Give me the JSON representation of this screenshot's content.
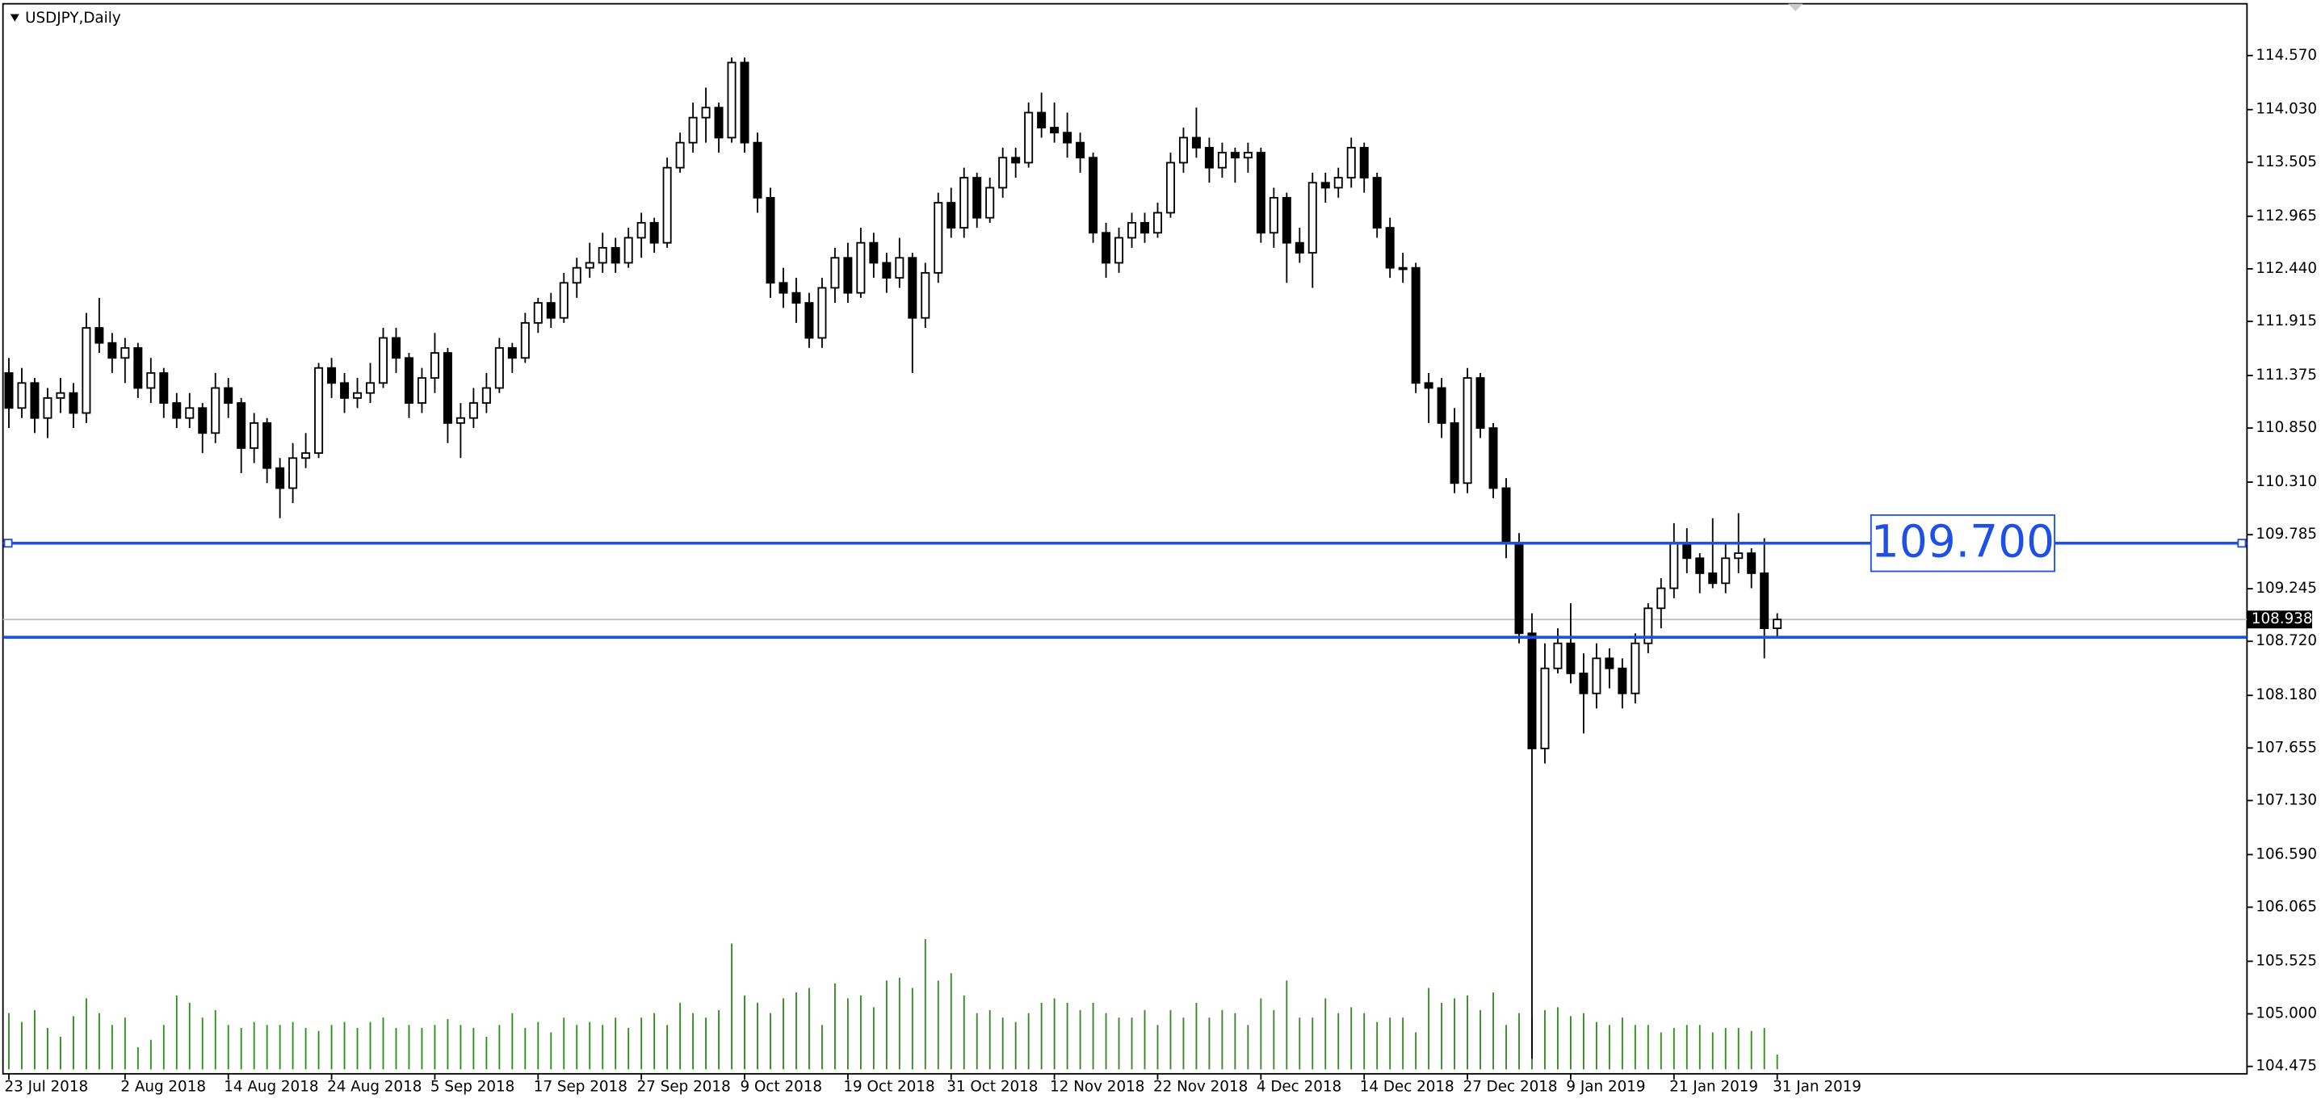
{
  "chart_data": {
    "type": "candlestick",
    "title": "USDJPY,Daily",
    "ylim": [
      104.401,
      115.087
    ],
    "yticks": [
      {
        "value": 114.57,
        "label": "114.570"
      },
      {
        "value": 114.03,
        "label": "114.030"
      },
      113.505,
      112.965,
      {
        "value": 112.44,
        "label": "112.440"
      },
      111.915,
      111.375,
      {
        "value": 110.85,
        "label": "110.850"
      },
      {
        "value": 110.31,
        "label": "110.310"
      },
      109.785,
      109.245,
      {
        "value": 108.72,
        "label": "108.720"
      },
      {
        "value": 108.18,
        "label": "108.180"
      },
      107.655,
      {
        "value": 107.13,
        "label": "107.130"
      },
      {
        "value": 106.59,
        "label": "106.590"
      },
      106.065,
      105.525,
      {
        "value": 105,
        "label": "105.000"
      },
      104.475
    ],
    "categories": [
      "23 Jul 2018",
      null,
      null,
      null,
      null,
      null,
      null,
      null,
      null,
      "2 Aug 2018",
      null,
      null,
      null,
      null,
      null,
      null,
      null,
      "14 Aug 2018",
      null,
      null,
      null,
      null,
      null,
      null,
      null,
      "24 Aug 2018",
      null,
      null,
      null,
      null,
      null,
      null,
      null,
      "5 Sep 2018",
      null,
      null,
      null,
      null,
      null,
      null,
      null,
      "17 Sep 2018",
      null,
      null,
      null,
      null,
      null,
      null,
      null,
      "27 Sep 2018",
      null,
      null,
      null,
      null,
      null,
      null,
      null,
      "9 Oct 2018",
      null,
      null,
      null,
      null,
      null,
      null,
      null,
      "19 Oct 2018",
      null,
      null,
      null,
      null,
      null,
      null,
      null,
      "31 Oct 2018",
      null,
      null,
      null,
      null,
      null,
      null,
      null,
      "12 Nov 2018",
      null,
      null,
      null,
      null,
      null,
      null,
      null,
      "22 Nov 2018",
      null,
      null,
      null,
      null,
      null,
      null,
      null,
      "4 Dec 2018",
      null,
      null,
      null,
      null,
      null,
      null,
      null,
      "14 Dec 2018",
      null,
      null,
      null,
      null,
      null,
      null,
      null,
      "27 Dec 2018",
      null,
      null,
      null,
      null,
      null,
      null,
      null,
      "9 Jan 2019",
      null,
      null,
      null,
      null,
      null,
      null,
      null,
      "21 Jan 2019",
      null,
      null,
      null,
      null,
      null,
      null,
      null,
      "31 Jan 2019"
    ],
    "ohlc": [
      [
        111.4,
        111.55,
        110.85,
        111.05
      ],
      [
        111.05,
        111.45,
        110.95,
        111.3
      ],
      [
        111.3,
        111.35,
        110.8,
        110.95
      ],
      [
        110.95,
        111.25,
        110.75,
        111.15
      ],
      [
        111.15,
        111.35,
        111.0,
        111.2
      ],
      [
        111.2,
        111.3,
        110.85,
        111.0
      ],
      [
        111.0,
        112.0,
        110.9,
        111.85
      ],
      [
        111.85,
        112.15,
        111.6,
        111.7
      ],
      [
        111.7,
        111.8,
        111.4,
        111.55
      ],
      [
        111.55,
        111.75,
        111.3,
        111.65
      ],
      [
        111.65,
        111.7,
        111.15,
        111.25
      ],
      [
        111.25,
        111.55,
        111.1,
        111.4
      ],
      [
        111.4,
        111.45,
        110.95,
        111.1
      ],
      [
        111.1,
        111.2,
        110.85,
        110.95
      ],
      [
        110.95,
        111.2,
        110.85,
        111.05
      ],
      [
        111.05,
        111.1,
        110.6,
        110.8
      ],
      [
        110.8,
        111.4,
        110.7,
        111.25
      ],
      [
        111.25,
        111.35,
        110.95,
        111.1
      ],
      [
        111.1,
        111.15,
        110.4,
        110.65
      ],
      [
        110.65,
        111.0,
        110.5,
        110.9
      ],
      [
        110.9,
        110.95,
        110.3,
        110.45
      ],
      [
        110.45,
        110.55,
        109.95,
        110.25
      ],
      [
        110.25,
        110.7,
        110.1,
        110.55
      ],
      [
        110.55,
        110.8,
        110.45,
        110.6
      ],
      [
        110.6,
        111.5,
        110.55,
        111.45
      ],
      [
        111.45,
        111.55,
        111.15,
        111.3
      ],
      [
        111.3,
        111.4,
        111.0,
        111.15
      ],
      [
        111.15,
        111.35,
        111.05,
        111.2
      ],
      [
        111.2,
        111.5,
        111.1,
        111.3
      ],
      [
        111.3,
        111.85,
        111.25,
        111.75
      ],
      [
        111.75,
        111.85,
        111.4,
        111.55
      ],
      [
        111.55,
        111.6,
        110.95,
        111.1
      ],
      [
        111.1,
        111.45,
        111.0,
        111.35
      ],
      [
        111.35,
        111.8,
        111.2,
        111.6
      ],
      [
        111.6,
        111.65,
        110.7,
        110.9
      ],
      [
        110.9,
        111.1,
        110.55,
        110.95
      ],
      [
        110.95,
        111.25,
        110.85,
        111.1
      ],
      [
        111.1,
        111.4,
        111.0,
        111.25
      ],
      [
        111.25,
        111.75,
        111.2,
        111.65
      ],
      [
        111.65,
        111.7,
        111.4,
        111.55
      ],
      [
        111.55,
        112.0,
        111.5,
        111.9
      ],
      [
        111.9,
        112.15,
        111.8,
        112.1
      ],
      [
        112.1,
        112.2,
        111.85,
        111.95
      ],
      [
        111.95,
        112.4,
        111.9,
        112.3
      ],
      [
        112.3,
        112.55,
        112.15,
        112.45
      ],
      [
        112.45,
        112.7,
        112.35,
        112.5
      ],
      [
        112.5,
        112.8,
        112.4,
        112.65
      ],
      [
        112.65,
        112.75,
        112.4,
        112.5
      ],
      [
        112.5,
        112.85,
        112.45,
        112.75
      ],
      [
        112.75,
        113.0,
        112.55,
        112.9
      ],
      [
        112.9,
        112.95,
        112.6,
        112.7
      ],
      [
        112.7,
        113.55,
        112.65,
        113.45
      ],
      [
        113.45,
        113.8,
        113.4,
        113.7
      ],
      [
        113.7,
        114.1,
        113.6,
        113.95
      ],
      [
        113.95,
        114.25,
        113.7,
        114.05
      ],
      [
        114.05,
        114.1,
        113.6,
        113.75
      ],
      [
        113.75,
        114.55,
        113.7,
        114.5
      ],
      [
        114.5,
        114.55,
        113.6,
        113.7
      ],
      [
        113.7,
        113.8,
        113.0,
        113.15
      ],
      [
        113.15,
        113.25,
        112.15,
        112.3
      ],
      [
        112.3,
        112.45,
        112.05,
        112.2
      ],
      [
        112.2,
        112.35,
        111.9,
        112.1
      ],
      [
        112.1,
        112.2,
        111.65,
        111.75
      ],
      [
        111.75,
        112.35,
        111.65,
        112.25
      ],
      [
        112.25,
        112.65,
        112.1,
        112.55
      ],
      [
        112.55,
        112.7,
        112.1,
        112.2
      ],
      [
        112.2,
        112.85,
        112.15,
        112.7
      ],
      [
        112.7,
        112.8,
        112.35,
        112.5
      ],
      [
        112.5,
        112.6,
        112.2,
        112.35
      ],
      [
        112.35,
        112.75,
        112.25,
        112.55
      ],
      [
        112.55,
        112.6,
        111.4,
        111.95
      ],
      [
        111.95,
        112.5,
        111.85,
        112.4
      ],
      [
        112.4,
        113.2,
        112.3,
        113.1
      ],
      [
        113.1,
        113.25,
        112.75,
        112.85
      ],
      [
        112.85,
        113.45,
        112.75,
        113.35
      ],
      [
        113.35,
        113.4,
        112.85,
        112.95
      ],
      [
        112.95,
        113.35,
        112.9,
        113.25
      ],
      [
        113.25,
        113.65,
        113.15,
        113.55
      ],
      [
        113.55,
        113.65,
        113.35,
        113.5
      ],
      [
        113.5,
        114.1,
        113.45,
        114.0
      ],
      [
        114.0,
        114.2,
        113.75,
        113.85
      ],
      [
        113.85,
        114.1,
        113.7,
        113.8
      ],
      [
        113.8,
        114.0,
        113.55,
        113.7
      ],
      [
        113.7,
        113.8,
        113.4,
        113.55
      ],
      [
        113.55,
        113.6,
        112.7,
        112.8
      ],
      [
        112.8,
        112.9,
        112.35,
        112.5
      ],
      [
        112.5,
        112.85,
        112.4,
        112.75
      ],
      [
        112.75,
        113.0,
        112.65,
        112.9
      ],
      [
        112.9,
        113.0,
        112.7,
        112.8
      ],
      [
        112.8,
        113.1,
        112.75,
        113.0
      ],
      [
        113.0,
        113.6,
        112.95,
        113.5
      ],
      [
        113.5,
        113.85,
        113.4,
        113.75
      ],
      [
        113.75,
        114.05,
        113.55,
        113.65
      ],
      [
        113.65,
        113.75,
        113.3,
        113.45
      ],
      [
        113.45,
        113.7,
        113.35,
        113.6
      ],
      [
        113.6,
        113.65,
        113.3,
        113.55
      ],
      [
        113.55,
        113.7,
        113.4,
        113.6
      ],
      [
        113.6,
        113.65,
        112.7,
        112.8
      ],
      [
        112.8,
        113.25,
        112.65,
        113.15
      ],
      [
        113.15,
        113.2,
        112.3,
        112.7
      ],
      [
        112.7,
        112.85,
        112.5,
        112.6
      ],
      [
        112.6,
        113.4,
        112.25,
        113.3
      ],
      [
        113.3,
        113.4,
        113.1,
        113.25
      ],
      [
        113.25,
        113.45,
        113.15,
        113.35
      ],
      [
        113.35,
        113.75,
        113.25,
        113.65
      ],
      [
        113.65,
        113.7,
        113.2,
        113.35
      ],
      [
        113.35,
        113.4,
        112.75,
        112.85
      ],
      [
        112.85,
        112.95,
        112.35,
        112.45
      ],
      [
        112.45,
        112.6,
        112.3,
        112.45
      ],
      [
        112.45,
        112.5,
        111.2,
        111.3
      ],
      [
        111.3,
        111.4,
        110.9,
        111.25
      ],
      [
        111.25,
        111.35,
        110.75,
        110.9
      ],
      [
        110.9,
        111.05,
        110.2,
        110.3
      ],
      [
        110.3,
        111.45,
        110.2,
        111.35
      ],
      [
        111.35,
        111.4,
        110.75,
        110.85
      ],
      [
        110.85,
        110.9,
        110.15,
        110.25
      ],
      [
        110.25,
        110.35,
        109.55,
        109.7
      ],
      [
        109.7,
        109.8,
        108.7,
        108.8
      ],
      [
        108.8,
        109.0,
        104.55,
        107.65
      ],
      [
        107.65,
        108.7,
        107.5,
        108.45
      ],
      [
        108.45,
        108.85,
        108.4,
        108.7
      ],
      [
        108.7,
        109.1,
        108.3,
        108.4
      ],
      [
        108.4,
        108.6,
        107.8,
        108.2
      ],
      [
        108.2,
        108.7,
        108.05,
        108.55
      ],
      [
        108.55,
        108.65,
        108.25,
        108.45
      ],
      [
        108.45,
        108.55,
        108.05,
        108.2
      ],
      [
        108.2,
        108.8,
        108.1,
        108.7
      ],
      [
        108.7,
        109.1,
        108.6,
        109.05
      ],
      [
        109.05,
        109.35,
        108.85,
        109.25
      ],
      [
        109.25,
        109.9,
        109.15,
        109.7
      ],
      [
        109.7,
        109.85,
        109.4,
        109.55
      ],
      [
        109.55,
        109.6,
        109.2,
        109.4
      ],
      [
        109.4,
        109.95,
        109.25,
        109.3
      ],
      [
        109.3,
        109.7,
        109.2,
        109.55
      ],
      [
        109.55,
        110.0,
        109.4,
        109.6
      ],
      [
        109.6,
        109.65,
        109.25,
        109.4
      ],
      [
        109.4,
        109.75,
        108.55,
        108.85
      ],
      [
        108.85,
        109.0,
        108.75,
        108.938
      ]
    ],
    "volume": [
      38,
      32,
      40,
      28,
      22,
      36,
      48,
      38,
      30,
      35,
      15,
      20,
      30,
      50,
      45,
      35,
      40,
      30,
      28,
      32,
      30,
      30,
      32,
      28,
      26,
      30,
      32,
      28,
      32,
      35,
      28,
      30,
      28,
      30,
      34,
      30,
      28,
      22,
      30,
      38,
      28,
      32,
      25,
      35,
      30,
      32,
      30,
      35,
      28,
      35,
      38,
      30,
      45,
      38,
      35,
      40,
      85,
      50,
      45,
      38,
      48,
      52,
      55,
      30,
      58,
      48,
      50,
      42,
      60,
      62,
      55,
      88,
      60,
      65,
      50,
      38,
      40,
      35,
      32,
      38,
      45,
      48,
      45,
      40,
      45,
      38,
      35,
      35,
      40,
      30,
      40,
      35,
      45,
      35,
      40,
      38,
      30,
      48,
      40,
      60,
      35,
      35,
      48,
      38,
      42,
      38,
      32,
      35,
      35,
      25,
      55,
      45,
      48,
      50,
      40,
      52,
      30,
      38,
      35,
      40,
      42,
      36,
      38,
      32,
      30,
      35,
      30,
      30,
      25,
      28,
      30,
      30,
      25,
      28,
      28,
      26,
      28,
      10
    ],
    "volume_color": "#2f8a1f",
    "up_color": "#ffffff",
    "down_color": "#000000",
    "hlines": [
      {
        "value": 109.7,
        "label": "109.700",
        "color": "#1f50e6"
      },
      {
        "value": 108.761,
        "color": "#1f50e6"
      }
    ],
    "bid": 108.938
  }
}
